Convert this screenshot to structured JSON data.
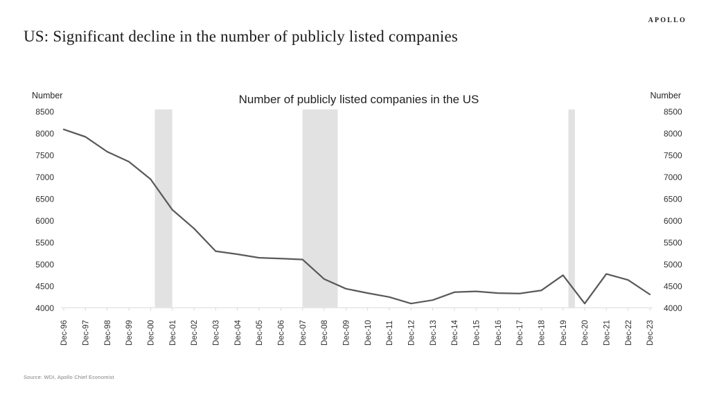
{
  "page": {
    "logo": "APOLLO",
    "title": "US: Significant decline in the number of publicly listed companies",
    "source": "Source: WDI, Apollo Chief Economist"
  },
  "chart_data": {
    "type": "line",
    "title": "Number of publicly listed companies in the US",
    "left_axis_title": "Number",
    "right_axis_title": "Number",
    "categories": [
      "Dec-96",
      "Dec-97",
      "Dec-98",
      "Dec-99",
      "Dec-00",
      "Dec-01",
      "Dec-02",
      "Dec-03",
      "Dec-04",
      "Dec-05",
      "Dec-06",
      "Dec-07",
      "Dec-08",
      "Dec-09",
      "Dec-10",
      "Dec-11",
      "Dec-12",
      "Dec-13",
      "Dec-14",
      "Dec-15",
      "Dec-16",
      "Dec-17",
      "Dec-18",
      "Dec-19",
      "Dec-20",
      "Dec-21",
      "Dec-22",
      "Dec-23"
    ],
    "values": [
      8090,
      7920,
      7580,
      7350,
      6950,
      6250,
      5820,
      5300,
      5230,
      5150,
      5130,
      5110,
      4660,
      4440,
      4340,
      4250,
      4100,
      4180,
      4360,
      4380,
      4340,
      4330,
      4400,
      4750,
      4100,
      4780,
      4640,
      4310
    ],
    "y_ticks": [
      8500,
      8000,
      7500,
      7000,
      6500,
      6000,
      5500,
      5000,
      4500,
      4000
    ],
    "ylim": [
      4000,
      8500
    ],
    "grid": false,
    "legend": "none",
    "line_color": "#595959",
    "band_color": "#e2e2e2",
    "axis_color": "#d9d9d9",
    "recession_bands": [
      {
        "start": 4.2,
        "end": 5.0
      },
      {
        "start": 11.0,
        "end": 12.62
      },
      {
        "start": 23.25,
        "end": 23.55
      }
    ]
  }
}
